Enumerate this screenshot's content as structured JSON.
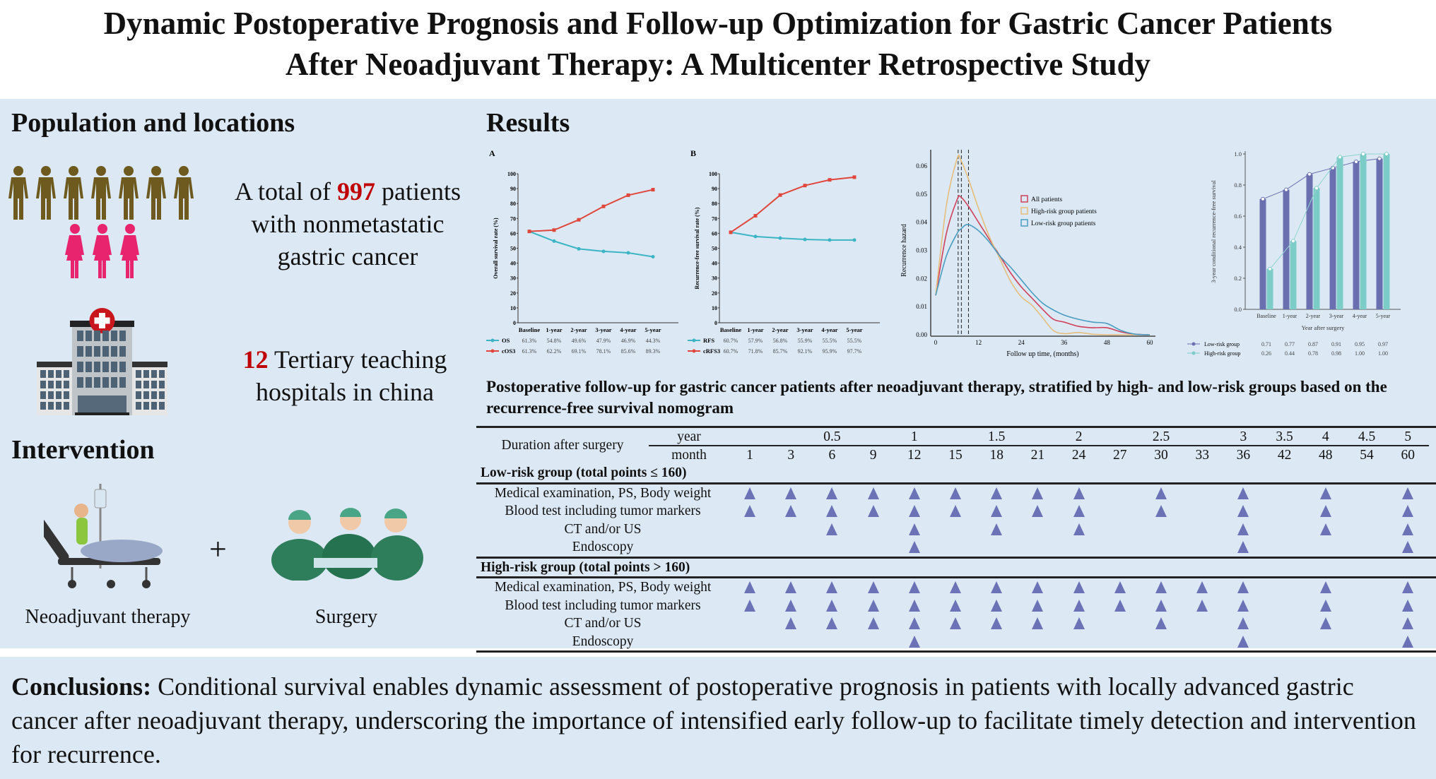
{
  "title": {
    "line1": "Dynamic Postoperative Prognosis and Follow-up Optimization for Gastric Cancer Patients",
    "line2": "After Neoadjuvant Therapy: A Multicenter Retrospective Study"
  },
  "population": {
    "heading": "Population and locations",
    "patients_pre": "A total of ",
    "patients_count": "997",
    "patients_post": " patients",
    "patients_line2": "with nonmetastatic",
    "patients_line3": "gastric cancer",
    "hospitals_count": "12",
    "hospitals_post": " Tertiary teaching",
    "hospitals_line2": "hospitals in china",
    "men_icons": 7,
    "women_icons": 3,
    "colors": {
      "men": "#6e5a1e",
      "women": "#e8246e",
      "highlight": "#c00000"
    }
  },
  "intervention": {
    "heading": "Intervention",
    "therapy_label": "Neoadjuvant therapy",
    "plus": "+",
    "surgery_label": "Surgery"
  },
  "results": {
    "heading": "Results"
  },
  "chart_data": [
    {
      "type": "line",
      "panel": "A",
      "ylabel": "Overall survival rate (%)",
      "ylim": [
        0,
        100
      ],
      "yticks": [
        0,
        10,
        20,
        30,
        40,
        50,
        60,
        70,
        80,
        90,
        100
      ],
      "categories": [
        "Baseline",
        "1-year",
        "2-year",
        "3-year",
        "4-year",
        "5-year"
      ],
      "series": [
        {
          "name": "OS",
          "color": "#3bb5c4",
          "values": [
            61.3,
            54.8,
            49.6,
            47.9,
            46.9,
            44.3
          ]
        },
        {
          "name": "cOS3",
          "color": "#e0463c",
          "values": [
            61.3,
            62.2,
            69.1,
            78.1,
            85.6,
            89.3
          ]
        }
      ]
    },
    {
      "type": "line",
      "panel": "B",
      "ylabel": "Recurrence-free survival rate (%)",
      "ylim": [
        0,
        100
      ],
      "yticks": [
        0,
        10,
        20,
        30,
        40,
        50,
        60,
        70,
        80,
        90,
        100
      ],
      "categories": [
        "Baseline",
        "1-year",
        "2-year",
        "3-year",
        "4-year",
        "5-year"
      ],
      "series": [
        {
          "name": "RFS",
          "color": "#3bb5c4",
          "values": [
            60.7,
            57.9,
            56.8,
            55.9,
            55.5,
            55.5
          ]
        },
        {
          "name": "cRFS3",
          "color": "#e0463c",
          "values": [
            60.7,
            71.8,
            85.7,
            92.1,
            95.9,
            97.7
          ]
        }
      ]
    },
    {
      "type": "line",
      "xlabel": "Follow up time, (months)",
      "ylabel": "Recurrence hazard",
      "xlim": [
        0,
        60
      ],
      "ylim": [
        0,
        0.065
      ],
      "xticks": [
        0,
        12,
        24,
        36,
        48,
        60
      ],
      "yticks": [
        "0.00",
        "0.01",
        "0.02",
        "0.03",
        "0.04",
        "0.05",
        "0.06"
      ],
      "legend": "right",
      "reference_lines_x": [
        6.3,
        7.2,
        9.2
      ],
      "x": [
        0,
        3,
        6,
        7,
        9,
        12,
        15,
        18,
        21,
        24,
        27,
        30,
        33,
        36,
        40,
        44,
        48,
        52,
        56,
        60
      ],
      "series": [
        {
          "name": "All patients",
          "color": "#d0405a",
          "values": [
            0.014,
            0.036,
            0.048,
            0.049,
            0.046,
            0.04,
            0.034,
            0.028,
            0.022,
            0.017,
            0.013,
            0.009,
            0.0055,
            0.0045,
            0.003,
            0.0025,
            0.0025,
            0.001,
            0.0002,
            0
          ]
        },
        {
          "name": "High-risk group patients",
          "color": "#e6bd7c",
          "values": [
            0.014,
            0.046,
            0.0625,
            0.0622,
            0.056,
            0.045,
            0.035,
            0.027,
            0.019,
            0.0135,
            0.0105,
            0.006,
            0.0015,
            0.0004,
            0.0008,
            0.0002,
            0,
            0,
            0,
            0
          ]
        },
        {
          "name": "Low-risk group patients",
          "color": "#4a9cc0",
          "values": [
            0.014,
            0.028,
            0.036,
            0.0375,
            0.0392,
            0.037,
            0.033,
            0.028,
            0.024,
            0.0195,
            0.015,
            0.0112,
            0.0088,
            0.007,
            0.0055,
            0.0045,
            0.004,
            0.0015,
            0.0002,
            0
          ]
        }
      ]
    },
    {
      "type": "bar",
      "xlabel": "Year after surgery",
      "ylabel": "3-year conditional recurrence-free survival",
      "ylim": [
        0,
        1.0
      ],
      "yticks": [
        "0.0",
        "0.2",
        "0.4",
        "0.6",
        "0.8",
        "1.0"
      ],
      "categories": [
        "Baseline",
        "1-year",
        "2-year",
        "3-year",
        "4-year",
        "5-year"
      ],
      "series": [
        {
          "name": "Low-risk group",
          "color": "#6a6fb0",
          "values": [
            0.71,
            0.77,
            0.87,
            0.91,
            0.95,
            0.97
          ]
        },
        {
          "name": "High-risk group",
          "color": "#7cccc8",
          "values": [
            0.26,
            0.44,
            0.78,
            0.98,
            1.0,
            1.0
          ]
        }
      ]
    }
  ],
  "followup": {
    "title": "Postoperative follow-up for gastric cancer patients after neoadjuvant therapy, stratified by high- and low-risk groups based on the recurrence-free survival nomogram",
    "duration_label": "Duration after surgery",
    "year_label": "year",
    "month_label": "month",
    "months": [
      1,
      3,
      6,
      9,
      12,
      15,
      18,
      21,
      24,
      27,
      30,
      33,
      36,
      42,
      48,
      54,
      60
    ],
    "years": [
      "",
      "",
      "0.5",
      "",
      "1",
      "",
      "1.5",
      "",
      "2",
      "",
      "2.5",
      "",
      "3",
      "3.5",
      "4",
      "4.5",
      "5"
    ],
    "marker_color": "#6b72b5",
    "groups": [
      {
        "label": "Low-risk group (total points ≤ 160)",
        "rows": [
          {
            "label": "Medical examination, PS, Body weight",
            "months": [
              1,
              3,
              6,
              9,
              12,
              15,
              18,
              21,
              24,
              30,
              36,
              48,
              60
            ]
          },
          {
            "label": "Blood test including tumor markers",
            "months": [
              1,
              3,
              6,
              9,
              12,
              15,
              18,
              21,
              24,
              30,
              36,
              48,
              60
            ]
          },
          {
            "label": "CT and/or US",
            "months": [
              6,
              12,
              18,
              24,
              36,
              48,
              60
            ]
          },
          {
            "label": "Endoscopy",
            "months": [
              12,
              36,
              60
            ]
          }
        ]
      },
      {
        "label": "High-risk group (total points > 160)",
        "rows": [
          {
            "label": "Medical examination, PS, Body weight",
            "months": [
              1,
              3,
              6,
              9,
              12,
              15,
              18,
              21,
              24,
              27,
              30,
              33,
              36,
              48,
              60
            ]
          },
          {
            "label": "Blood test including tumor markers",
            "months": [
              1,
              3,
              6,
              9,
              12,
              15,
              18,
              21,
              24,
              27,
              30,
              33,
              36,
              48,
              60
            ]
          },
          {
            "label": "CT and/or US",
            "months": [
              3,
              6,
              9,
              12,
              15,
              18,
              21,
              24,
              30,
              36,
              48,
              60
            ]
          },
          {
            "label": "Endoscopy",
            "months": [
              12,
              36,
              60
            ]
          }
        ]
      }
    ]
  },
  "conclusions": {
    "label": "Conclusions:",
    "text": " Conditional survival enables dynamic assessment of postoperative prognosis in patients with locally advanced gastric cancer after neoadjuvant therapy, underscoring the importance of intensified early follow-up to facilitate timely detection and intervention for recurrence."
  }
}
